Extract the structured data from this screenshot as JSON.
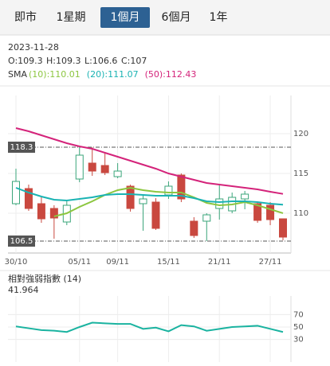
{
  "tabs": {
    "items": [
      "即市",
      "1星期",
      "1個月",
      "6個月",
      "1年"
    ],
    "selected": 2
  },
  "info": {
    "date": "2023-11-28",
    "ohlc": [
      "O:109.3",
      "H:109.3",
      "L:106.6",
      "C:107"
    ],
    "sma_label": "SMA"
  },
  "chart_data": [
    {
      "type": "candlestick",
      "categories": [
        "30/10",
        null,
        null,
        null,
        null,
        "05/11",
        null,
        null,
        "09/11",
        null,
        null,
        null,
        "15/11",
        null,
        null,
        null,
        "21/11",
        null,
        null,
        null,
        "27/11",
        null
      ],
      "open": [
        111.2,
        113.1,
        111.2,
        110.6,
        108.9,
        114.3,
        116.3,
        116.0,
        114.6,
        113.4,
        111.2,
        111.4,
        112.3,
        114.8,
        109.0,
        109.0,
        110.6,
        110.3,
        111.8,
        111.2,
        111.0,
        109.3
      ],
      "high": [
        115.6,
        113.6,
        112.0,
        111.0,
        111.5,
        118.3,
        118.3,
        117.5,
        116.3,
        113.6,
        112.2,
        111.9,
        114.0,
        115.0,
        109.5,
        110.0,
        113.5,
        112.6,
        112.8,
        111.5,
        111.4,
        109.3
      ],
      "low": [
        111.0,
        110.3,
        108.8,
        106.8,
        108.5,
        113.9,
        114.7,
        114.8,
        114.4,
        110.2,
        107.8,
        107.9,
        111.8,
        111.4,
        106.9,
        106.5,
        109.2,
        110.0,
        110.5,
        108.8,
        108.5,
        106.6
      ],
      "close": [
        114.0,
        110.6,
        109.3,
        109.4,
        111.0,
        117.3,
        115.3,
        115.1,
        115.3,
        110.6,
        111.8,
        108.1,
        113.4,
        111.8,
        107.2,
        109.8,
        111.8,
        112.0,
        112.4,
        109.1,
        109.2,
        107.0
      ],
      "up_color": "#3aa57a",
      "down_color": "#c9483f",
      "series": [
        {
          "name": "(10):",
          "color": "#8cc63f",
          "values": [
            null,
            null,
            null,
            109.6,
            110.0,
            110.8,
            111.5,
            112.3,
            112.9,
            113.2,
            112.9,
            112.7,
            112.6,
            112.6,
            112.0,
            111.3,
            111.0,
            111.1,
            111.4,
            111.0,
            110.5,
            110.01
          ]
        },
        {
          "name": "(20):",
          "color": "#1ab3b3",
          "values": [
            113.2,
            112.6,
            112.1,
            111.7,
            111.6,
            111.8,
            112.0,
            112.3,
            112.4,
            112.4,
            112.3,
            112.2,
            112.2,
            112.2,
            111.9,
            111.5,
            111.4,
            111.5,
            111.5,
            111.4,
            111.2,
            111.07
          ]
        },
        {
          "name": "(50):",
          "color": "#d4237a",
          "values": [
            120.7,
            120.3,
            119.8,
            119.3,
            118.8,
            118.4,
            118.1,
            117.6,
            117.1,
            116.6,
            116.1,
            115.6,
            115.0,
            114.6,
            114.2,
            113.8,
            113.6,
            113.4,
            113.2,
            113.0,
            112.7,
            112.43
          ]
        }
      ],
      "ref_lines": [
        118.3,
        106.5
      ],
      "ylim": [
        105,
        124.8
      ],
      "yticks": [
        110,
        115,
        120
      ],
      "grid": true
    },
    {
      "type": "line",
      "title": "相對強弱指數 (14)",
      "color": "#1ab3a0",
      "values": [
        51,
        48,
        45,
        44,
        42,
        50,
        57,
        56,
        55,
        55,
        47,
        49,
        43,
        53,
        51,
        44,
        47,
        50,
        51,
        52,
        47,
        41.964
      ],
      "ylim": [
        0,
        100
      ],
      "yticks": [
        30,
        50,
        70
      ],
      "grid": true
    }
  ]
}
